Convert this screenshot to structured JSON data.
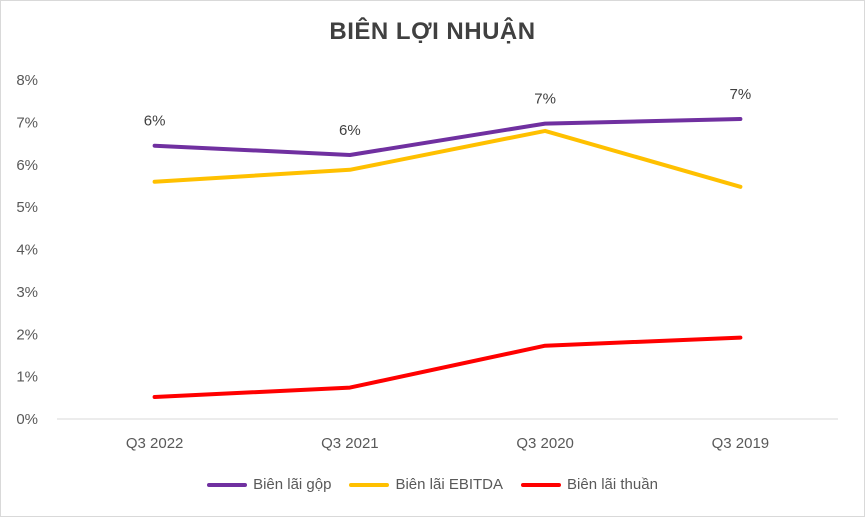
{
  "chart_data": {
    "type": "line",
    "title": "BIÊN LỢI NHUẬN",
    "categories": [
      "Q3 2022",
      "Q3 2021",
      "Q3 2020",
      "Q3 2019"
    ],
    "yticks": [
      "0%",
      "1%",
      "2%",
      "3%",
      "4%",
      "5%",
      "6%",
      "7%",
      "8%"
    ],
    "ylim": [
      0,
      8
    ],
    "y_unit": "%",
    "grid": false,
    "legend_position": "bottom",
    "series": [
      {
        "name": "Biên lãi gộp",
        "color": "#7030a0",
        "values": [
          6.45,
          6.23,
          6.97,
          7.08
        ],
        "data_labels": [
          "6%",
          "6%",
          "7%",
          "7%"
        ]
      },
      {
        "name": "Biên lãi EBITDA",
        "color": "#ffc000",
        "values": [
          5.6,
          5.88,
          6.8,
          5.48
        ]
      },
      {
        "name": "Biên lãi thuần",
        "color": "#ff0000",
        "values": [
          0.52,
          0.74,
          1.73,
          1.92
        ]
      }
    ]
  }
}
